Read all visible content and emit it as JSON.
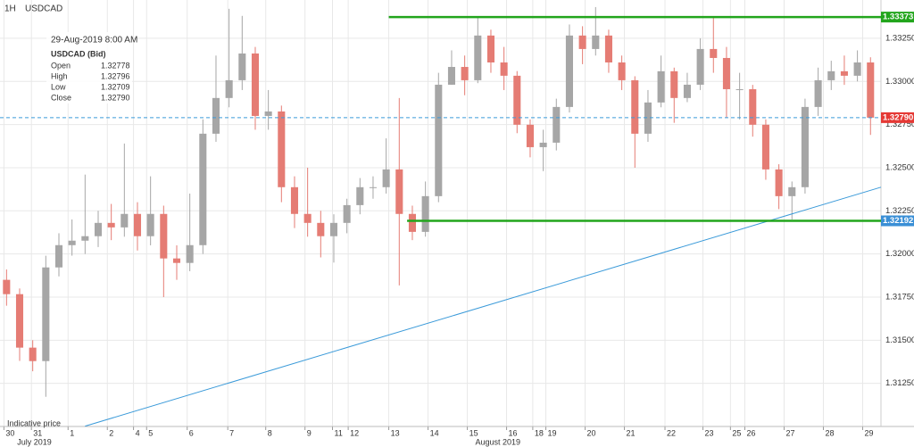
{
  "chart_data": {
    "type": "candlestick",
    "timeframe": "1H",
    "title": "USDCAD",
    "footnote": "Indicative price",
    "info": {
      "date": "29-Aug-2019 8:00 AM",
      "label": "USDCAD (Bid)",
      "rows": [
        {
          "name": "Open",
          "value": "1.32778"
        },
        {
          "name": "High",
          "value": "1.32796"
        },
        {
          "name": "Low",
          "value": "1.32709"
        },
        {
          "name": "Close",
          "value": "1.32790"
        }
      ]
    },
    "up_color": "#a6a6a6",
    "down_color": "#e57c74",
    "open": [
      1.3185,
      1.31767,
      1.31457,
      1.31379,
      1.31922,
      1.32051,
      1.32077,
      1.32103,
      1.3218,
      1.32154,
      1.32232,
      1.32103,
      1.32232,
      1.31974,
      1.31948,
      1.32051,
      1.32697,
      1.32904,
      1.33007,
      1.33162,
      1.328,
      1.32826,
      1.32387,
      1.32232,
      1.3218,
      1.32103,
      1.3218,
      1.32283,
      1.32387,
      1.32387,
      1.3249,
      1.32232,
      1.32128,
      1.32335,
      1.32981,
      1.33084,
      1.33007,
      1.33266,
      1.3311,
      1.33033,
      1.32749,
      1.32619,
      1.32645,
      1.32852,
      1.33266,
      1.33188,
      1.33266,
      1.3311,
      1.33007,
      1.32697,
      1.32878,
      1.33059,
      1.32904,
      1.32981,
      1.33188,
      1.33136,
      1.32955,
      1.32955,
      1.32749,
      1.3249,
      1.32335,
      1.32387,
      1.32852,
      1.33007,
      1.33059,
      1.33033,
      1.3311
    ],
    "high": [
      1.3191,
      1.318,
      1.315,
      1.3199,
      1.3212,
      1.322,
      1.3246,
      1.3225,
      1.3229,
      1.3264,
      1.323,
      1.3245,
      1.3228,
      1.3205,
      1.3235,
      1.3278,
      1.3315,
      1.33421,
      1.3338,
      1.332,
      1.3295,
      1.3286,
      1.3245,
      1.325,
      1.3225,
      1.3223,
      1.3232,
      1.3244,
      1.3245,
      1.3267,
      1.32904,
      1.3228,
      1.3242,
      1.3305,
      1.3318,
      1.3315,
      1.33373,
      1.333,
      1.332,
      1.3306,
      1.3278,
      1.3272,
      1.329,
      1.3333,
      1.3332,
      1.33431,
      1.333,
      1.3315,
      1.3303,
      1.3295,
      1.3315,
      1.3308,
      1.3305,
      1.3325,
      1.33379,
      1.332,
      1.3305,
      1.3298,
      1.3278,
      1.3252,
      1.3242,
      1.329,
      1.3308,
      1.3312,
      1.3315,
      1.3318,
      1.3314
    ],
    "low": [
      1.317,
      1.3138,
      1.3132,
      1.31172,
      1.3187,
      1.3199,
      1.32,
      1.3204,
      1.3208,
      1.321,
      1.3202,
      1.3205,
      1.3175,
      1.3185,
      1.319,
      1.32,
      1.3265,
      1.3285,
      1.3295,
      1.3272,
      1.3272,
      1.323,
      1.3215,
      1.321,
      1.3198,
      1.3195,
      1.3212,
      1.3223,
      1.3232,
      1.3235,
      1.31818,
      1.3208,
      1.321,
      1.323,
      1.3298,
      1.3292,
      1.3299,
      1.3305,
      1.3295,
      1.327,
      1.3256,
      1.3248,
      1.326,
      1.3282,
      1.331,
      1.3315,
      1.3305,
      1.3295,
      1.325,
      1.3265,
      1.3285,
      1.3276,
      1.3288,
      1.3295,
      1.3305,
      1.3279,
      1.3278,
      1.3268,
      1.3243,
      1.3226,
      1.322,
      1.3235,
      1.328,
      1.3295,
      1.3298,
      1.33,
      1.3269
    ],
    "close": [
      1.31767,
      1.31457,
      1.31379,
      1.31922,
      1.32051,
      1.32077,
      1.32103,
      1.3218,
      1.32154,
      1.32232,
      1.32103,
      1.32232,
      1.31974,
      1.31948,
      1.32051,
      1.32697,
      1.32904,
      1.33007,
      1.33162,
      1.328,
      1.32826,
      1.32387,
      1.32232,
      1.3218,
      1.32103,
      1.3218,
      1.32283,
      1.32387,
      1.32387,
      1.3249,
      1.32232,
      1.32128,
      1.32335,
      1.32981,
      1.33084,
      1.33007,
      1.33266,
      1.3311,
      1.33033,
      1.32749,
      1.32619,
      1.32645,
      1.32852,
      1.33266,
      1.33188,
      1.33266,
      1.3311,
      1.33007,
      1.32697,
      1.32878,
      1.33059,
      1.32904,
      1.32981,
      1.33188,
      1.33136,
      1.32955,
      1.32955,
      1.32749,
      1.3249,
      1.32335,
      1.32387,
      1.32852,
      1.33007,
      1.33059,
      1.33033,
      1.3311,
      1.3279
    ],
    "xlim": [
      0,
      67.3
    ],
    "xticks": [
      {
        "value": 0.3,
        "label": "30"
      },
      {
        "value": 2.4,
        "label": "31"
      },
      {
        "value": 5.2,
        "label": "1"
      },
      {
        "value": 8.2,
        "label": "2"
      },
      {
        "value": 10.2,
        "label": "4"
      },
      {
        "value": 11.2,
        "label": "5"
      },
      {
        "value": 14.3,
        "label": "6"
      },
      {
        "value": 17.4,
        "label": "7"
      },
      {
        "value": 20.3,
        "label": "8"
      },
      {
        "value": 23.3,
        "label": "9"
      },
      {
        "value": 25.4,
        "label": "11"
      },
      {
        "value": 26.6,
        "label": "12"
      },
      {
        "value": 29.7,
        "label": "13"
      },
      {
        "value": 32.7,
        "label": "14"
      },
      {
        "value": 35.7,
        "label": "15"
      },
      {
        "value": 38.7,
        "label": "16"
      },
      {
        "value": 40.7,
        "label": "18"
      },
      {
        "value": 41.7,
        "label": "19"
      },
      {
        "value": 44.7,
        "label": "20"
      },
      {
        "value": 47.7,
        "label": "21"
      },
      {
        "value": 50.8,
        "label": "22"
      },
      {
        "value": 53.7,
        "label": "23"
      },
      {
        "value": 55.8,
        "label": "25"
      },
      {
        "value": 56.9,
        "label": "26"
      },
      {
        "value": 59.9,
        "label": "27"
      },
      {
        "value": 62.9,
        "label": "28"
      },
      {
        "value": 65.9,
        "label": "29"
      }
    ],
    "month_labels": [
      {
        "value": 2.4,
        "label": "July 2019"
      },
      {
        "value": 37.4,
        "label": "August 2019"
      }
    ],
    "ylim": [
      1.31,
      1.33472
    ],
    "yticks": [
      {
        "value": 1.3125,
        "label": "1.31250"
      },
      {
        "value": 1.315,
        "label": "1.31500"
      },
      {
        "value": 1.3175,
        "label": "1.31750"
      },
      {
        "value": 1.32,
        "label": "1.32000"
      },
      {
        "value": 1.3225,
        "label": "1.32250"
      },
      {
        "value": 1.325,
        "label": "1.32500"
      },
      {
        "value": 1.3275,
        "label": "1.32750"
      },
      {
        "value": 1.33,
        "label": "1.33000"
      },
      {
        "value": 1.3325,
        "label": "1.33250"
      }
    ],
    "grid": true,
    "levels": [
      {
        "value": 1.33373,
        "label": "1.33373",
        "color": "#22a51c",
        "start": 29.7
      },
      {
        "value": 1.32192,
        "label": "1.32192",
        "color": "#22a51c",
        "label_color": "#3a8fd6",
        "start": 31.1
      }
    ],
    "trendline": {
      "x": [
        6.5,
        67.3
      ],
      "y": [
        1.31002,
        1.32387
      ],
      "color": "#3a9ad9"
    },
    "last_price": {
      "value": 1.3279,
      "label": "1.32790",
      "color": "#e53935",
      "line_color": "#3a9ad9"
    }
  }
}
